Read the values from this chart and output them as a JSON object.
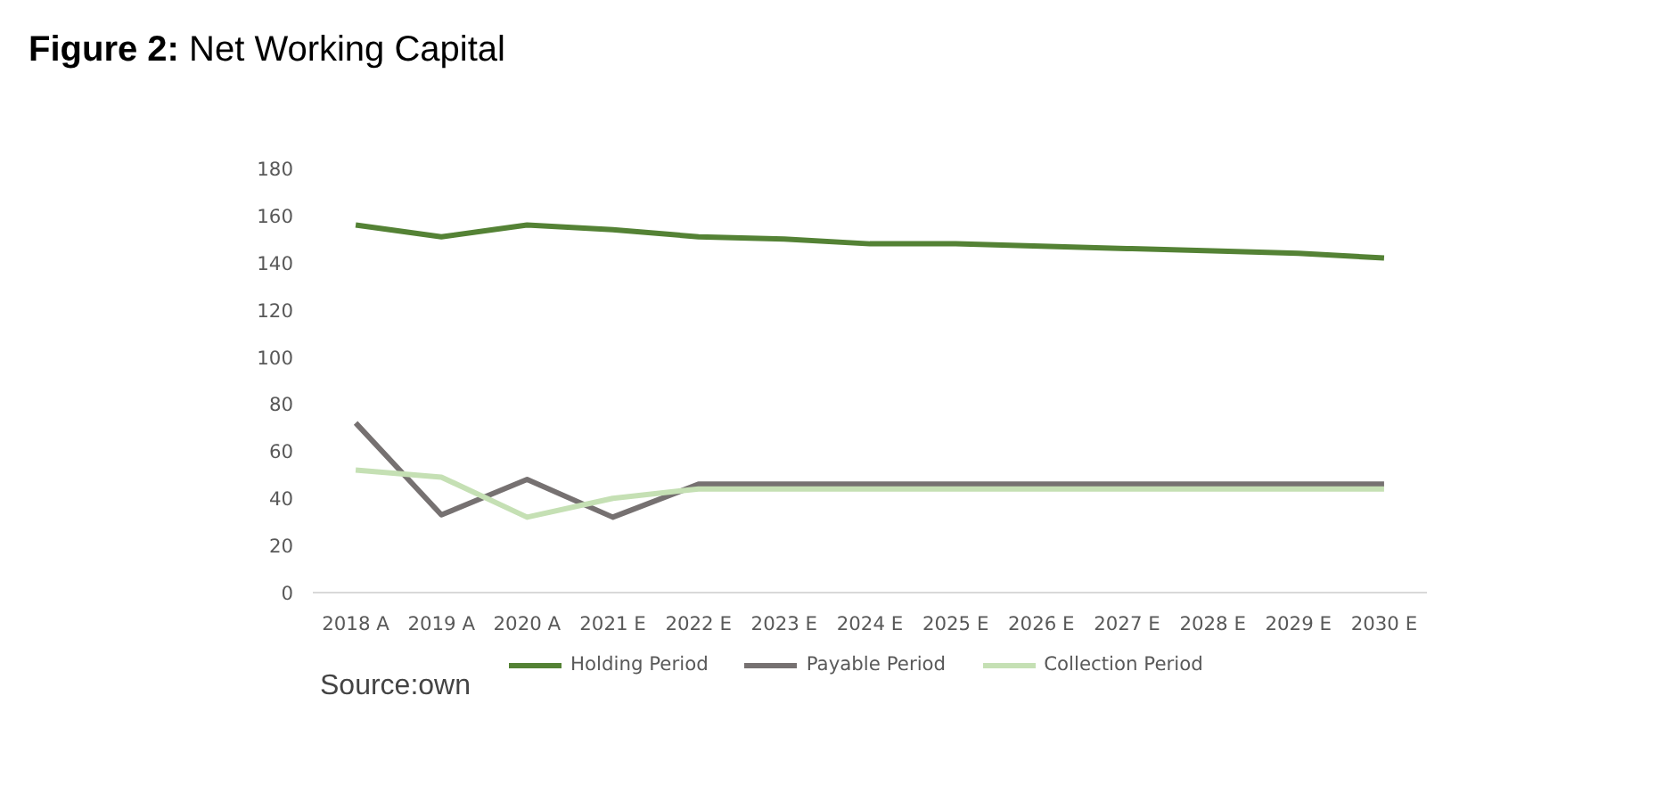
{
  "chart_data": {
    "type": "line",
    "title": "Figure 2: Net Working Capital",
    "categories": [
      "2018 A",
      "2019 A",
      "2020 A",
      "2021 E",
      "2022 E",
      "2023 E",
      "2024 E",
      "2025 E",
      "2026 E",
      "2027 E",
      "2028 E",
      "2029 E",
      "2030 E"
    ],
    "series": [
      {
        "name": "Holding Period",
        "color": "#548235",
        "values": [
          156,
          151,
          156,
          154,
          151,
          150,
          148,
          148,
          147,
          146,
          145,
          144,
          142
        ]
      },
      {
        "name": "Payable Period",
        "color": "#767171",
        "values": [
          72,
          33,
          48,
          32,
          46,
          46,
          46,
          46,
          46,
          46,
          46,
          46,
          46
        ]
      },
      {
        "name": "Collection Period",
        "color": "#c5e0b4",
        "values": [
          52,
          49,
          32,
          40,
          44,
          44,
          44,
          44,
          44,
          44,
          44,
          44,
          44
        ]
      }
    ],
    "ylim": [
      0,
      180
    ],
    "yticks": [
      0,
      20,
      40,
      60,
      80,
      100,
      120,
      140,
      160,
      180
    ],
    "grid": false,
    "legend": "bottom",
    "line_style": "solid",
    "marker": "none",
    "annotations": [
      "Source:own"
    ]
  }
}
